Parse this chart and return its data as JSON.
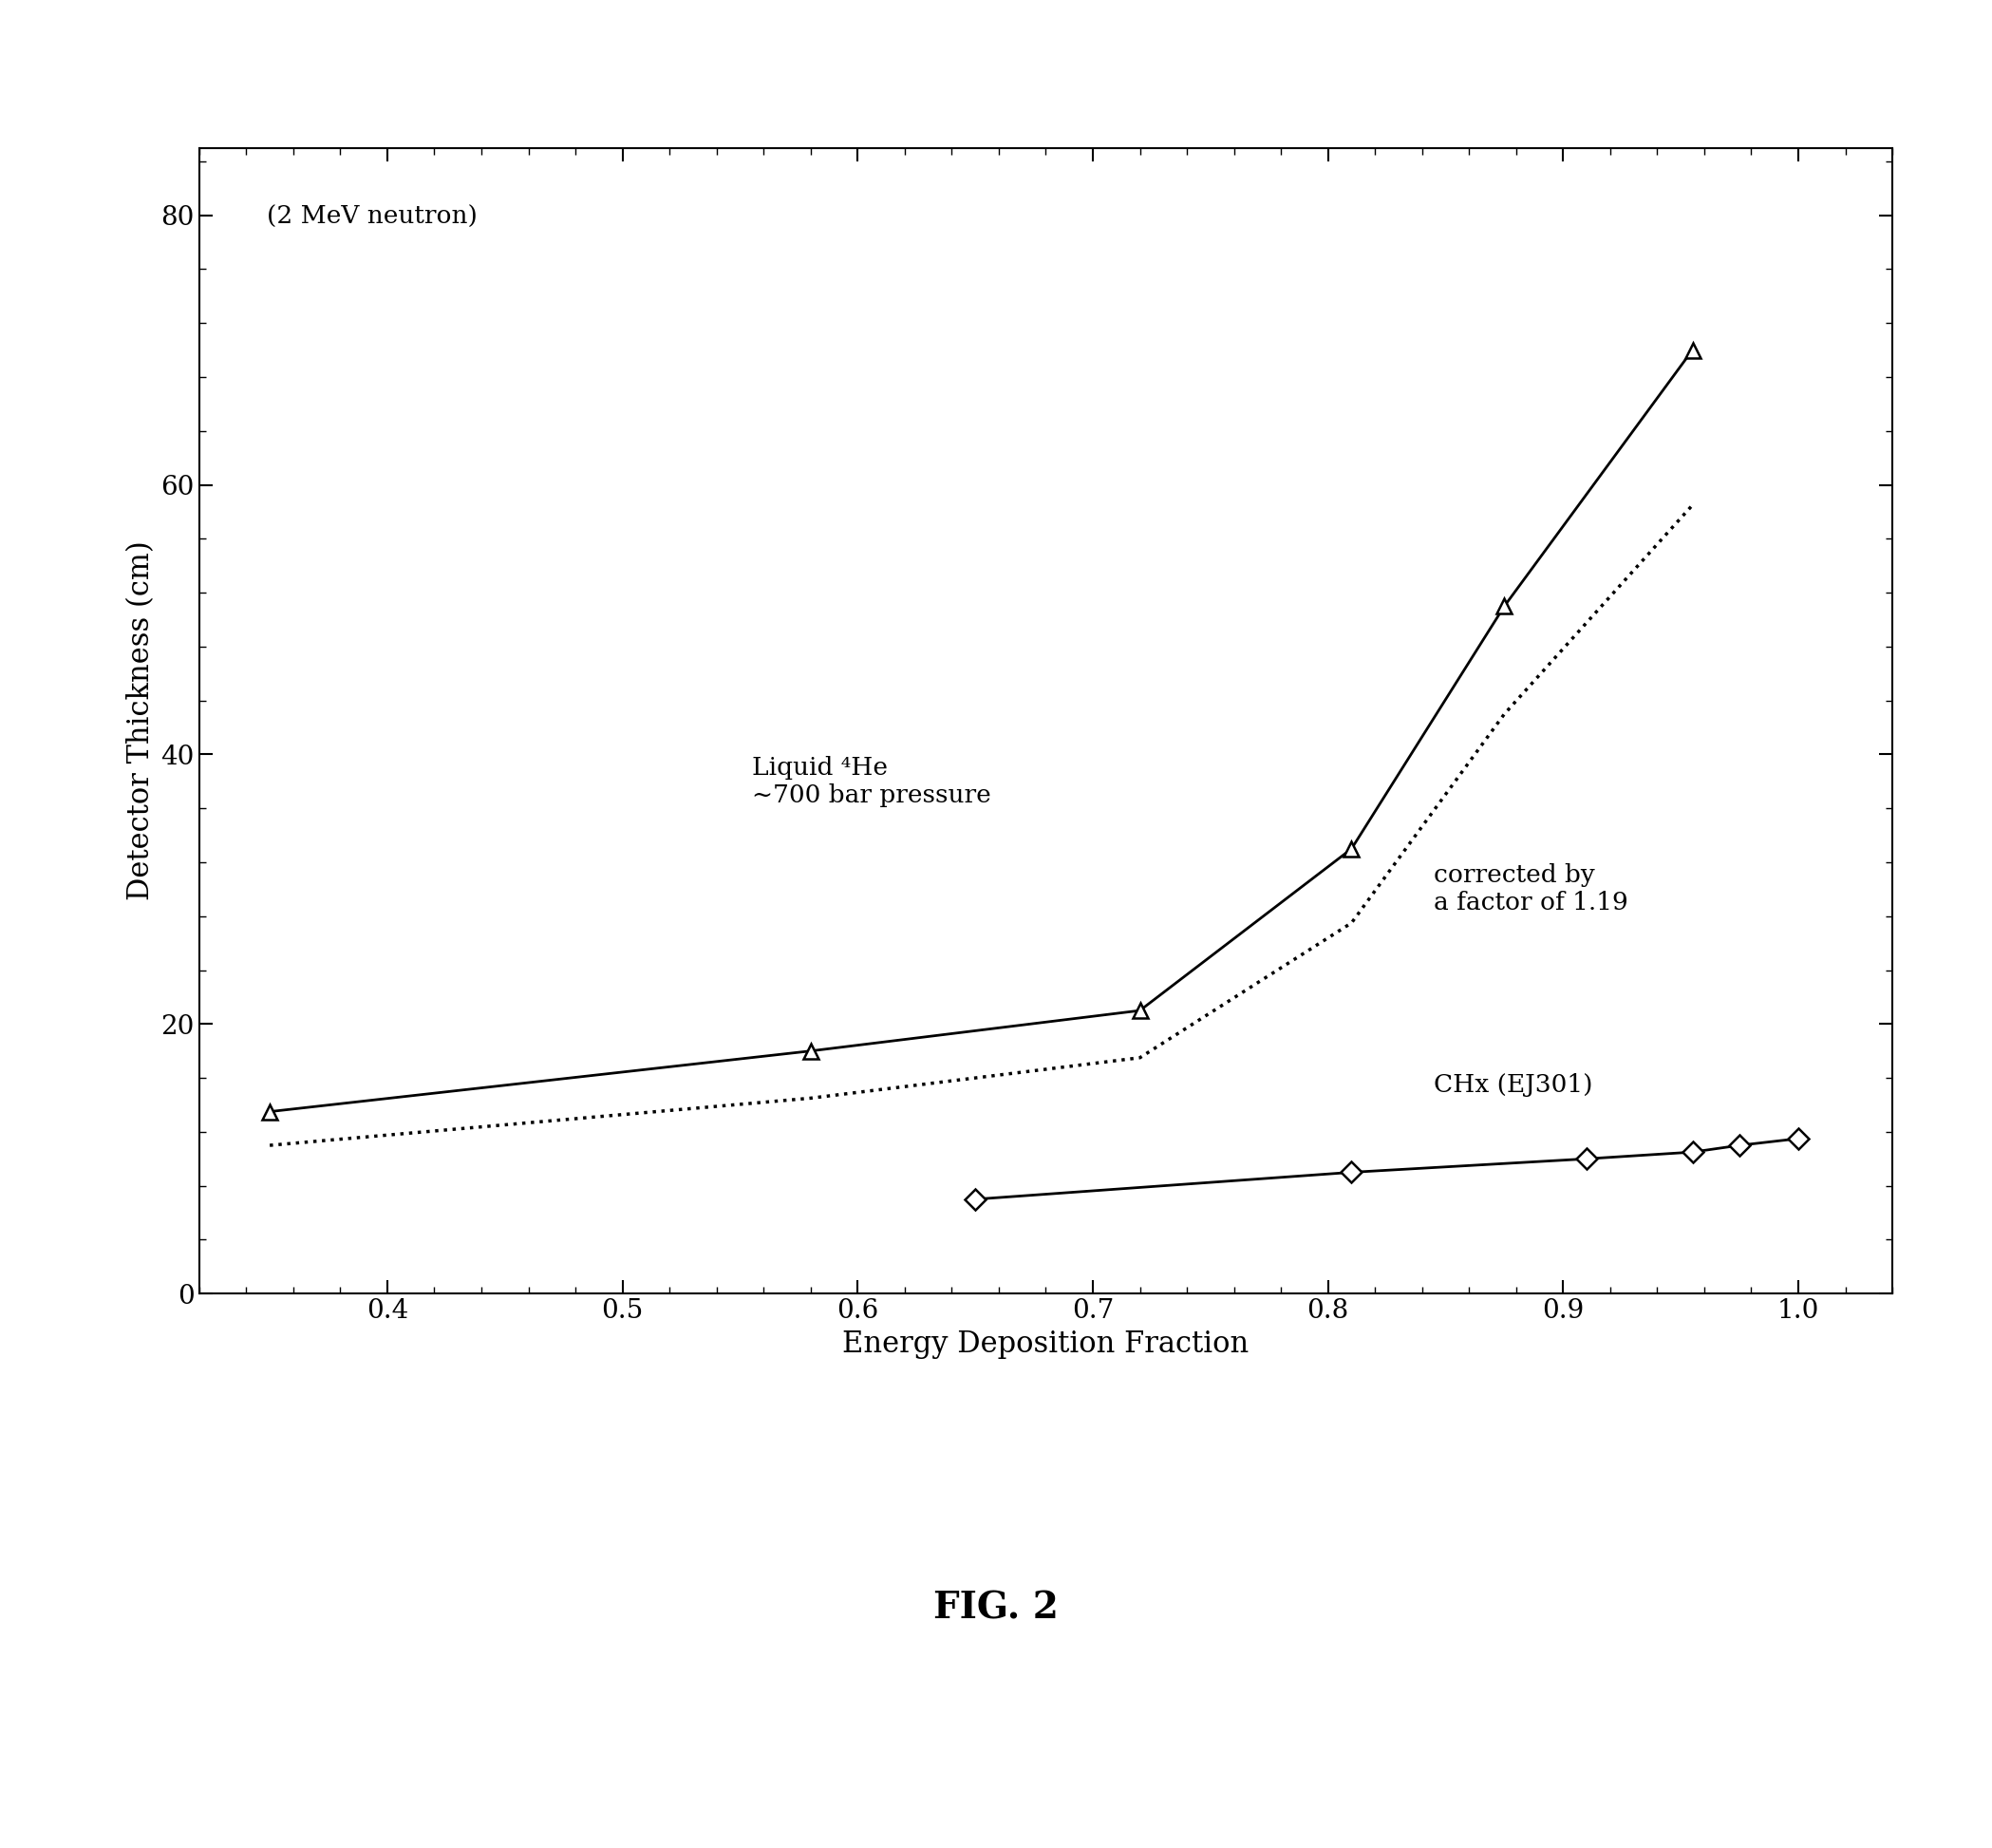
{
  "title": "FIG. 2",
  "subtitle": "(2 MeV neutron)",
  "xlabel": "Energy Deposition Fraction",
  "ylabel": "Detector Thickness (cm)",
  "xlim": [
    0.32,
    1.04
  ],
  "ylim": [
    0,
    85
  ],
  "xticks": [
    0.4,
    0.5,
    0.6,
    0.7,
    0.8,
    0.9,
    1.0
  ],
  "yticks": [
    0,
    20,
    40,
    60,
    80
  ],
  "he4_solid_x": [
    0.35,
    0.58,
    0.72,
    0.81,
    0.875,
    0.955
  ],
  "he4_solid_y": [
    13.5,
    18.0,
    21.0,
    33.0,
    51.0,
    70.0
  ],
  "he4_dotted_x": [
    0.35,
    0.58,
    0.72,
    0.81,
    0.875,
    0.955
  ],
  "he4_dotted_y": [
    11.0,
    14.5,
    17.5,
    27.5,
    43.0,
    58.5
  ],
  "chx_x": [
    0.65,
    0.81,
    0.91,
    0.955,
    0.975,
    1.0
  ],
  "chx_y": [
    7.0,
    9.0,
    10.0,
    10.5,
    11.0,
    11.5
  ],
  "label_he4": "Liquid ⁴He\n~700 bar pressure",
  "label_corrected": "corrected by\na factor of 1.19",
  "label_chx": "CHx (EJ301)",
  "background_color": "#ffffff",
  "line_color": "#000000",
  "marker_color": "#000000",
  "fig_label_fontsize": 28,
  "axis_label_fontsize": 22,
  "tick_label_fontsize": 20,
  "annotation_fontsize": 19,
  "subtitle_fontsize": 19
}
